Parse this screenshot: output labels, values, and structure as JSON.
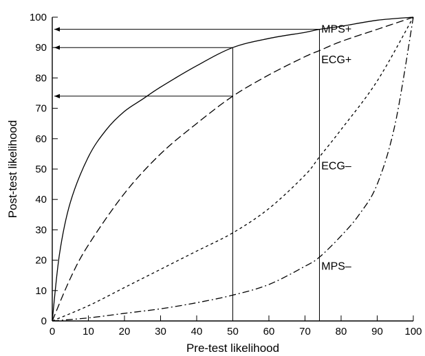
{
  "chart_data": {
    "type": "line",
    "title": "",
    "xlabel": "Pre-test likelihood",
    "ylabel": "Post-test likelihood",
    "xlim": [
      0,
      100
    ],
    "ylim": [
      0,
      100
    ],
    "xticks": [
      0,
      10,
      20,
      30,
      40,
      50,
      60,
      70,
      80,
      90,
      100
    ],
    "yticks": [
      0,
      10,
      20,
      30,
      40,
      50,
      60,
      70,
      80,
      90,
      100
    ],
    "grid": false,
    "series": [
      {
        "name": "MPS+",
        "line_style": "solid",
        "label_at": [
          73,
          96
        ],
        "x": [
          0,
          2,
          5,
          10,
          15,
          20,
          25,
          30,
          40,
          50,
          60,
          70,
          74,
          80,
          90,
          100
        ],
        "y": [
          0,
          22,
          39,
          54,
          63,
          69,
          73,
          77,
          84,
          90,
          93,
          95,
          96,
          97,
          99,
          100
        ]
      },
      {
        "name": "ECG+",
        "line_style": "dashed",
        "label_at": [
          73,
          86
        ],
        "x": [
          0,
          5,
          10,
          20,
          30,
          40,
          50,
          60,
          70,
          74,
          80,
          90,
          100
        ],
        "y": [
          0,
          14,
          25,
          42,
          55,
          65,
          74,
          81,
          87,
          89,
          92,
          96,
          100
        ]
      },
      {
        "name": "ECG–",
        "line_style": "dotted",
        "label_at": [
          73,
          51
        ],
        "x": [
          0,
          10,
          20,
          30,
          40,
          50,
          60,
          70,
          74,
          80,
          90,
          100
        ],
        "y": [
          0,
          5,
          11,
          17,
          23,
          29,
          37,
          48,
          54,
          63,
          79,
          100
        ]
      },
      {
        "name": "MPS–",
        "line_style": "dashdot",
        "label_at": [
          73,
          18
        ],
        "x": [
          0,
          10,
          20,
          30,
          40,
          50,
          60,
          70,
          74,
          80,
          85,
          90,
          95,
          100
        ],
        "y": [
          0,
          1,
          2.5,
          4,
          6,
          8.5,
          12,
          18,
          21,
          28,
          35,
          45,
          65,
          100
        ]
      }
    ],
    "reference_lines": [
      {
        "from": [
          50,
          0
        ],
        "to": [
          50,
          90
        ]
      },
      {
        "from": [
          74,
          0
        ],
        "to": [
          74,
          96
        ]
      }
    ],
    "arrows": [
      {
        "from": [
          74,
          96
        ],
        "to": [
          0,
          96
        ]
      },
      {
        "from": [
          50,
          90
        ],
        "to": [
          0,
          90
        ]
      },
      {
        "from": [
          50,
          74
        ],
        "to": [
          0,
          74
        ]
      }
    ]
  }
}
